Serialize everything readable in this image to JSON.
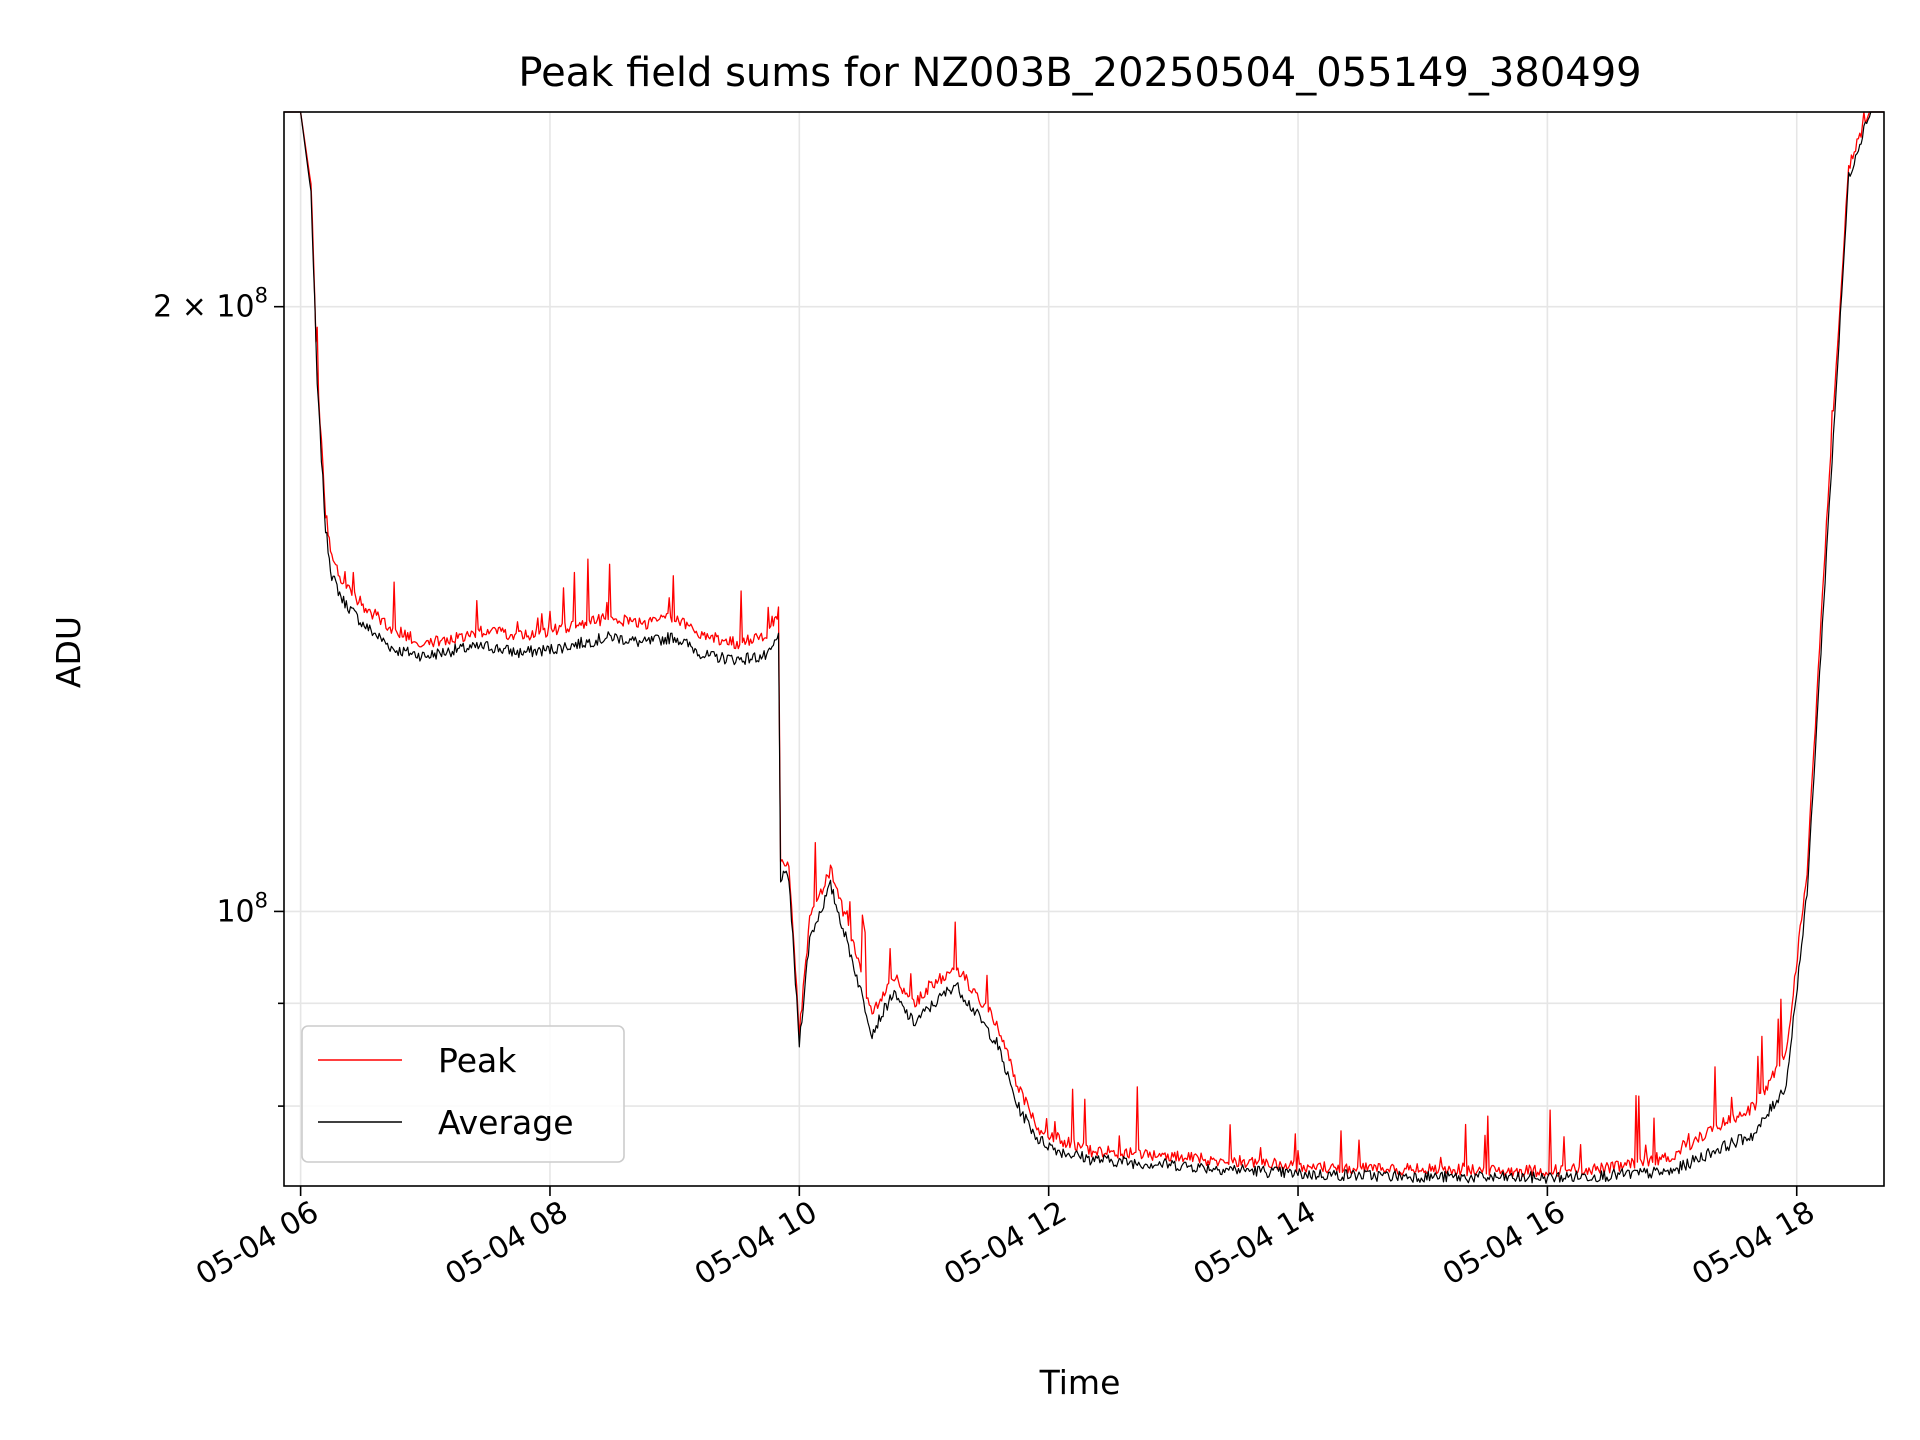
{
  "chart_data": {
    "type": "line",
    "title": "Peak field sums for NZ003B_20250504_055149_380499",
    "xlabel": "Time",
    "ylabel": "ADU",
    "xscale": "time",
    "yscale": "log",
    "xlim": [
      "2025-05-04T05:52:00",
      "2025-05-04T18:42:00"
    ],
    "ylim": [
      73000000,
      250000000
    ],
    "grid": true,
    "legend_position": "lower-left",
    "x_ticks": [
      {
        "value": "2025-05-04T06:00:00",
        "label": "05-04 06"
      },
      {
        "value": "2025-05-04T08:00:00",
        "label": "05-04 08"
      },
      {
        "value": "2025-05-04T10:00:00",
        "label": "05-04 10"
      },
      {
        "value": "2025-05-04T12:00:00",
        "label": "05-04 12"
      },
      {
        "value": "2025-05-04T14:00:00",
        "label": "05-04 14"
      },
      {
        "value": "2025-05-04T16:00:00",
        "label": "05-04 16"
      },
      {
        "value": "2025-05-04T18:00:00",
        "label": "05-04 18"
      }
    ],
    "y_ticks": [
      {
        "value": 200000000,
        "label": "2 × 10",
        "exponent": "8"
      },
      {
        "value": 100000000,
        "label": "10",
        "exponent": "8"
      }
    ],
    "y_minor_ticks": [
      90000000,
      80000000
    ],
    "series": [
      {
        "name": "Peak",
        "color": "#ff0000",
        "x": [
          "05:52",
          "06:00",
          "06:05",
          "06:08",
          "06:12",
          "06:15",
          "06:20",
          "06:30",
          "06:45",
          "07:00",
          "07:15",
          "07:30",
          "07:45",
          "08:00",
          "08:15",
          "08:30",
          "08:45",
          "09:00",
          "09:15",
          "09:30",
          "09:45",
          "09:50",
          "09:51",
          "09:55",
          "10:00",
          "10:05",
          "10:15",
          "10:25",
          "10:35",
          "10:45",
          "10:55",
          "11:05",
          "11:15",
          "11:25",
          "11:35",
          "11:45",
          "11:55",
          "12:05",
          "12:20",
          "12:40",
          "13:00",
          "13:20",
          "13:40",
          "14:00",
          "14:30",
          "15:00",
          "15:30",
          "16:00",
          "16:30",
          "17:00",
          "17:20",
          "17:40",
          "17:55",
          "18:05",
          "18:15",
          "18:25",
          "18:35",
          "18:42"
        ],
        "values": [
          250000000,
          250000000,
          230000000,
          185000000,
          158000000,
          150000000,
          146000000,
          142000000,
          138000000,
          136000000,
          137000000,
          138000000,
          137000000,
          138000000,
          139000000,
          140000000,
          139000000,
          140000000,
          137000000,
          136000000,
          137000000,
          141000000,
          106000000,
          106000000,
          87000000,
          99000000,
          105000000,
          97000000,
          89000000,
          93000000,
          90000000,
          92000000,
          94000000,
          91000000,
          88000000,
          82000000,
          78000000,
          77000000,
          76000000,
          75800000,
          75500000,
          75200000,
          75000000,
          74600000,
          74500000,
          74400000,
          74300000,
          74300000,
          74500000,
          75500000,
          78000000,
          80000000,
          85000000,
          105000000,
          160000000,
          235000000,
          250000000,
          250000000
        ]
      },
      {
        "name": "Average",
        "color": "#000000",
        "x": [
          "05:52",
          "06:00",
          "06:05",
          "06:08",
          "06:12",
          "06:15",
          "06:20",
          "06:30",
          "06:45",
          "07:00",
          "07:15",
          "07:30",
          "07:45",
          "08:00",
          "08:15",
          "08:30",
          "08:45",
          "09:00",
          "09:15",
          "09:30",
          "09:45",
          "09:50",
          "09:51",
          "09:55",
          "10:00",
          "10:05",
          "10:15",
          "10:25",
          "10:35",
          "10:45",
          "10:55",
          "11:05",
          "11:15",
          "11:25",
          "11:35",
          "11:45",
          "11:55",
          "12:05",
          "12:20",
          "12:40",
          "13:00",
          "13:20",
          "13:40",
          "14:00",
          "14:30",
          "15:00",
          "15:30",
          "16:00",
          "16:30",
          "17:00",
          "17:20",
          "17:40",
          "17:55",
          "18:05",
          "18:15",
          "18:25",
          "18:35",
          "18:42"
        ],
        "values": [
          250000000,
          250000000,
          228000000,
          183000000,
          155000000,
          147000000,
          143000000,
          139000000,
          135000000,
          134000000,
          135000000,
          135500000,
          134500000,
          135000000,
          136000000,
          137000000,
          136000000,
          137000000,
          134000000,
          133500000,
          134000000,
          137000000,
          104000000,
          104000000,
          86000000,
          97000000,
          103000000,
          95000000,
          87000000,
          91000000,
          88000000,
          90000000,
          92000000,
          89000000,
          86000000,
          80000000,
          77000000,
          76000000,
          75300000,
          75000000,
          74800000,
          74500000,
          74300000,
          74000000,
          73900000,
          73800000,
          73700000,
          73700000,
          73900000,
          74200000,
          76000000,
          77500000,
          82000000,
          102000000,
          155000000,
          232000000,
          250000000,
          250000000
        ]
      }
    ]
  }
}
